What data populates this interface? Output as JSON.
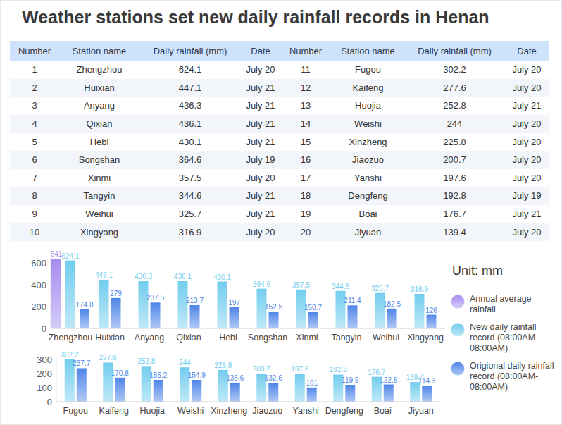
{
  "title": "Weather stations set new daily rainfall records in Henan",
  "table": {
    "columns": [
      "Number",
      "Station name",
      "Daily rainfall (mm)",
      "Date"
    ],
    "rows": [
      [
        1,
        "Zhengzhou",
        624.1,
        "July 20"
      ],
      [
        2,
        "Huixian",
        447.1,
        "July 21"
      ],
      [
        3,
        "Anyang",
        436.3,
        "July 21"
      ],
      [
        4,
        "Qixian",
        436.1,
        "July 21"
      ],
      [
        5,
        "Hebi",
        430.1,
        "July 21"
      ],
      [
        6,
        "Songshan",
        364.6,
        "July 19"
      ],
      [
        7,
        "Xinmi",
        357.5,
        "July 20"
      ],
      [
        8,
        "Tangyin",
        344.6,
        "July 21"
      ],
      [
        9,
        "Weihui",
        325.7,
        "July 21"
      ],
      [
        10,
        "Xingyang",
        316.9,
        "July 20"
      ],
      [
        11,
        "Fugou",
        302.2,
        "July 20"
      ],
      [
        12,
        "Kaifeng",
        277.6,
        "July 20"
      ],
      [
        13,
        "Huojia",
        252.8,
        "July 21"
      ],
      [
        14,
        "Weishi",
        244,
        "July 20"
      ],
      [
        15,
        "Xinzheng",
        225.8,
        "July 20"
      ],
      [
        16,
        "Jiaozuo",
        200.7,
        "July 20"
      ],
      [
        17,
        "Yanshi",
        197.6,
        "July 20"
      ],
      [
        18,
        "Dengfeng",
        192.8,
        "July 19"
      ],
      [
        19,
        "Boai",
        176.7,
        "July 21"
      ],
      [
        20,
        "Jiyuan",
        139.4,
        "July 20"
      ]
    ]
  },
  "unit": "Unit: mm",
  "chart_data": [
    {
      "type": "bar",
      "categories": [
        "Zhengzhou",
        "Huixian",
        "Anyang",
        "Qixian",
        "Hebi",
        "Songshan",
        "Xinmi",
        "Tangyin",
        "Weihui",
        "Xingyang"
      ],
      "series": [
        {
          "name": "Annual average rainfall",
          "color": "#a58cf0",
          "values": [
            641,
            null,
            null,
            null,
            null,
            null,
            null,
            null,
            null,
            null
          ]
        },
        {
          "name": "New daily rainfall record (08:00AM-08:00AM)",
          "color": "#72cdee",
          "values": [
            624.1,
            447.1,
            436.3,
            436.1,
            430.1,
            364.6,
            357.5,
            344.6,
            325.7,
            316.9
          ]
        },
        {
          "name": "Origional daily rainfall record (08:00AM-08:00AM)",
          "color": "#4f86e8",
          "values": [
            174.8,
            279,
            237.5,
            213.7,
            197,
            152.5,
            150.7,
            211.4,
            182.5,
            126
          ]
        }
      ],
      "ylim": [
        0,
        660
      ],
      "yticks": [
        0,
        200,
        400,
        600
      ],
      "grid": false,
      "data_labels": true,
      "legend": "right"
    },
    {
      "type": "bar",
      "categories": [
        "Fugou",
        "Kaifeng",
        "Huojia",
        "Weishi",
        "Xinzheng",
        "Jiaozuo",
        "Yanshi",
        "Dengfeng",
        "Boai",
        "Jiyuan"
      ],
      "series": [
        {
          "name": "New daily rainfall record (08:00AM-08:00AM)",
          "color": "#72cdee",
          "values": [
            302.2,
            277.6,
            252.8,
            244,
            225.8,
            200.7,
            197.6,
            192.8,
            176.7,
            139.4
          ]
        },
        {
          "name": "Origional daily rainfall record (08:00AM-08:00AM)",
          "color": "#4f86e8",
          "values": [
            237.7,
            170.8,
            155.2,
            154.9,
            135.6,
            132.6,
            101,
            119.9,
            122.5,
            114.3
          ]
        }
      ],
      "ylim": [
        0,
        320
      ],
      "yticks": [
        0,
        100,
        200,
        300
      ],
      "grid": false,
      "data_labels": true
    }
  ]
}
